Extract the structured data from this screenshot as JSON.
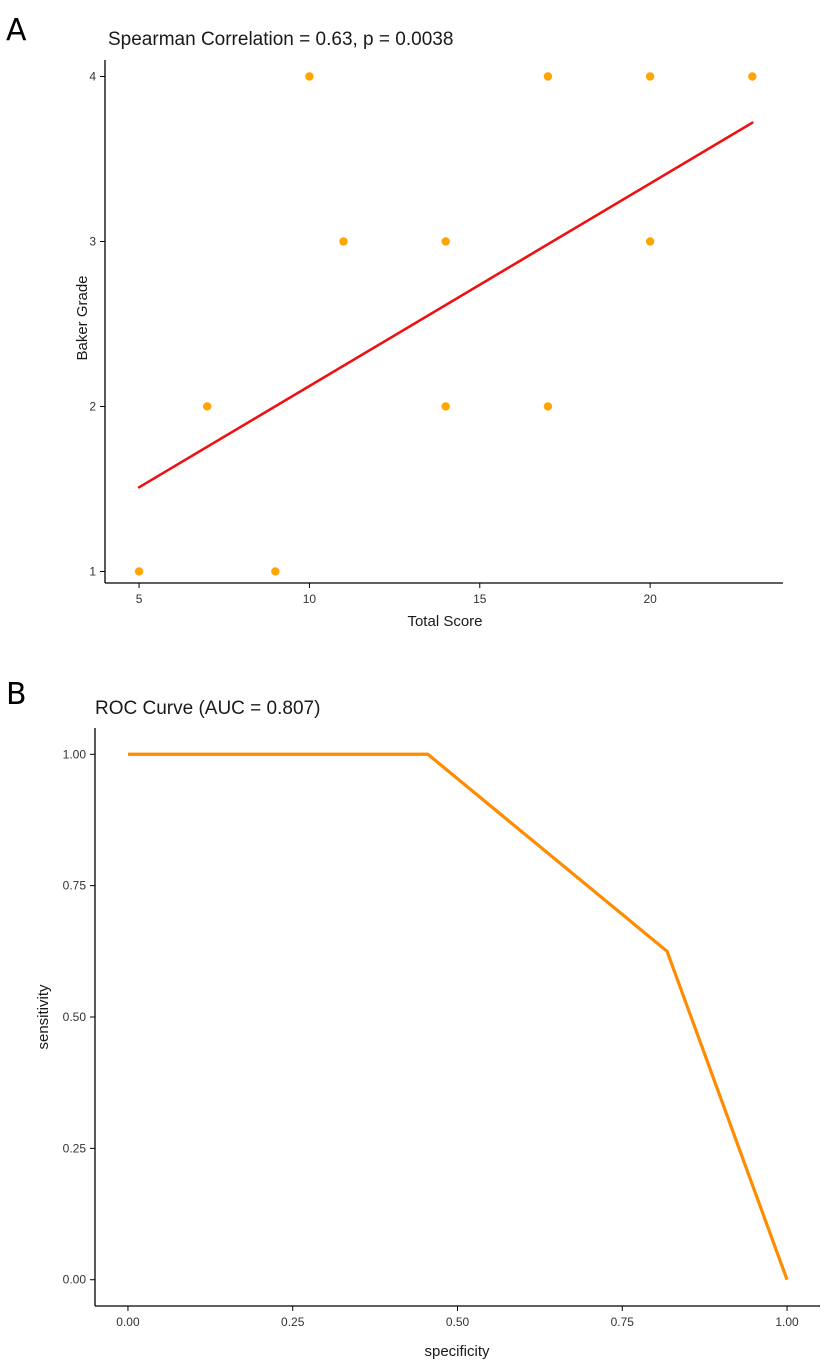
{
  "chart_data": [
    {
      "panel": "A",
      "type": "scatter",
      "title": "Spearman Correlation = 0.63, p = 0.0038",
      "xlabel": "Total Score",
      "ylabel": "Baker Grade",
      "xlim": [
        4,
        23.9
      ],
      "ylim": [
        0.93,
        4.1
      ],
      "xticks": [
        5,
        10,
        15,
        20
      ],
      "yticks": [
        1,
        2,
        3,
        4
      ],
      "grid": false,
      "colors": {
        "points": "#FFA500",
        "fit_line": "#EE1111"
      },
      "points": [
        {
          "x": 5,
          "y": 1
        },
        {
          "x": 7,
          "y": 2
        },
        {
          "x": 9,
          "y": 1
        },
        {
          "x": 10,
          "y": 4
        },
        {
          "x": 11,
          "y": 3
        },
        {
          "x": 14,
          "y": 3
        },
        {
          "x": 14,
          "y": 2
        },
        {
          "x": 17,
          "y": 4
        },
        {
          "x": 17,
          "y": 2
        },
        {
          "x": 20,
          "y": 4
        },
        {
          "x": 20,
          "y": 3
        },
        {
          "x": 23,
          "y": 4
        }
      ],
      "fit_line": {
        "x": [
          5,
          23
        ],
        "y": [
          1.51,
          3.72
        ]
      }
    },
    {
      "panel": "B",
      "type": "line",
      "title": "ROC Curve (AUC = 0.807)",
      "xlabel": "specificity",
      "ylabel": "sensitivity",
      "xlim": [
        -0.05,
        1.05
      ],
      "ylim": [
        -0.05,
        1.05
      ],
      "xticks": [
        "0.00",
        "0.25",
        "0.50",
        "0.75",
        "1.00"
      ],
      "yticks": [
        "0.00",
        "0.25",
        "0.50",
        "0.75",
        "1.00"
      ],
      "grid": false,
      "colors": {
        "curve": "#FF8C00"
      },
      "series": [
        {
          "x": [
            0.0,
            0.455,
            0.818,
            1.0
          ],
          "y": [
            1.0,
            1.0,
            0.625,
            0.0
          ]
        }
      ]
    }
  ]
}
